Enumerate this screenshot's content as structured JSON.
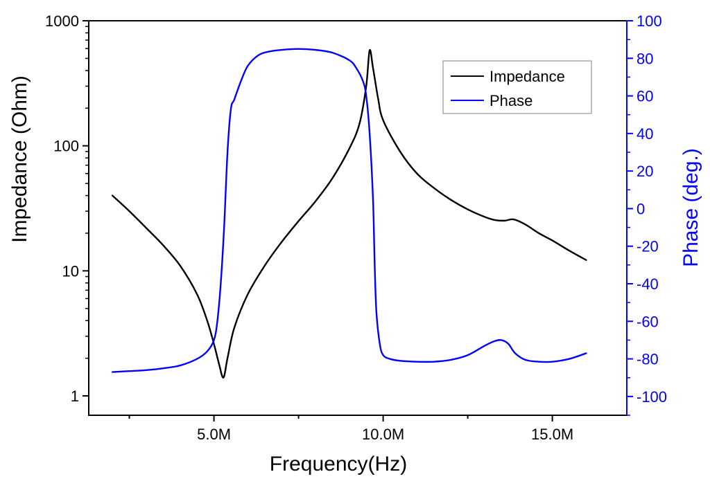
{
  "chart_data": {
    "type": "line",
    "xlabel": "Frequency(Hz)",
    "ylabel": "Impedance (Ohm)",
    "y2label": "Phase (deg.)",
    "xlim": [
      1.3,
      17.2
    ],
    "ylim": [
      0.7,
      1000
    ],
    "y2lim": [
      -110,
      100
    ],
    "x_ticks": [
      {
        "value": 5.0,
        "label": "5.0M"
      },
      {
        "value": 10.0,
        "label": "10.0M"
      },
      {
        "value": 15.0,
        "label": "15.0M"
      }
    ],
    "y_ticks": [
      {
        "value": 1,
        "label": "1"
      },
      {
        "value": 10,
        "label": "10"
      },
      {
        "value": 100,
        "label": "100"
      },
      {
        "value": 1000,
        "label": "1000"
      }
    ],
    "y2_ticks": [
      {
        "value": 100,
        "label": "100"
      },
      {
        "value": 80,
        "label": "80"
      },
      {
        "value": 60,
        "label": "60"
      },
      {
        "value": 40,
        "label": "40"
      },
      {
        "value": 20,
        "label": "20"
      },
      {
        "value": 0,
        "label": "0"
      },
      {
        "value": -20,
        "label": "-20"
      },
      {
        "value": -40,
        "label": "-40"
      },
      {
        "value": -60,
        "label": "-60"
      },
      {
        "value": -80,
        "label": "-80"
      },
      {
        "value": -100,
        "label": "-100"
      }
    ],
    "legend_position": "top-right",
    "colors": {
      "impedance": "#000000",
      "phase": "#0000ff"
    },
    "series": [
      {
        "name": "Impedance",
        "axis": "left",
        "scale": "log",
        "x": [
          2.0,
          2.5,
          3.0,
          3.5,
          4.0,
          4.5,
          4.8,
          5.0,
          5.15,
          5.28,
          5.4,
          5.6,
          6.0,
          6.5,
          7.0,
          7.5,
          8.0,
          8.5,
          9.0,
          9.3,
          9.5,
          9.6,
          9.7,
          9.85,
          10.0,
          10.5,
          11.0,
          11.5,
          12.0,
          12.5,
          13.0,
          13.3,
          13.6,
          13.85,
          14.2,
          14.6,
          15.0,
          15.5,
          16.0
        ],
        "values": [
          40,
          30,
          22,
          16,
          11,
          6.5,
          4.0,
          2.6,
          1.8,
          1.4,
          2.0,
          3.5,
          6.5,
          11,
          17,
          25,
          36,
          55,
          95,
          150,
          300,
          580,
          420,
          240,
          160,
          90,
          60,
          46,
          37,
          31,
          27,
          25.5,
          25.2,
          25.8,
          23.5,
          20,
          17.5,
          14.5,
          12.2
        ]
      },
      {
        "name": "Phase",
        "axis": "right",
        "scale": "linear",
        "x": [
          2.0,
          2.5,
          3.0,
          3.5,
          4.0,
          4.5,
          4.8,
          5.0,
          5.1,
          5.2,
          5.3,
          5.4,
          5.5,
          5.6,
          5.8,
          6.0,
          6.3,
          6.6,
          7.0,
          7.5,
          8.0,
          8.5,
          9.0,
          9.2,
          9.4,
          9.5,
          9.6,
          9.7,
          9.75,
          9.8,
          9.9,
          10.0,
          10.2,
          10.5,
          11.0,
          11.5,
          12.0,
          12.5,
          13.0,
          13.3,
          13.5,
          13.7,
          13.9,
          14.2,
          14.6,
          15.0,
          15.5,
          16.0
        ],
        "values": [
          -87,
          -86.5,
          -86,
          -85,
          -83.5,
          -80,
          -76,
          -70,
          -60,
          -40,
          -10,
          30,
          53,
          58,
          68,
          76,
          81.5,
          83.5,
          84.5,
          85,
          84.5,
          83,
          79,
          75,
          68,
          60,
          40,
          5,
          -30,
          -55,
          -72,
          -78,
          -80,
          -81,
          -81.5,
          -81.5,
          -80.5,
          -78,
          -73,
          -70.5,
          -70,
          -72,
          -77,
          -80.5,
          -81.5,
          -81.5,
          -80,
          -77
        ]
      }
    ]
  }
}
